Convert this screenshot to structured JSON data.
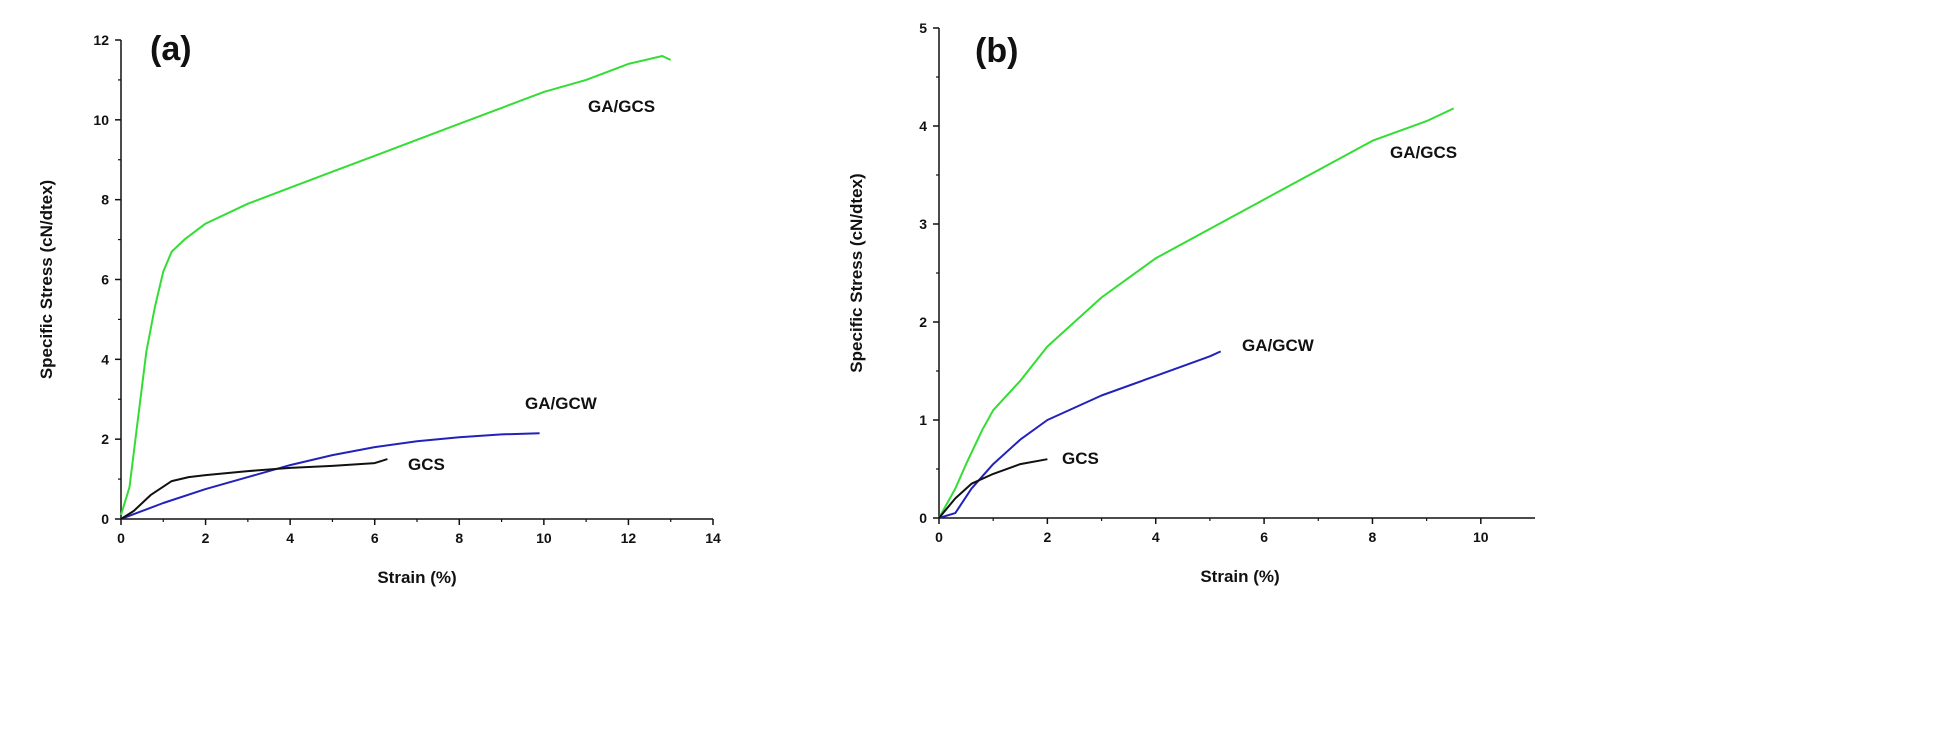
{
  "chart_data": [
    {
      "type": "line",
      "panel_label": "(a)",
      "xlabel": "Strain (%)",
      "ylabel": "Specific Stress (cN/dtex)",
      "xlim": [
        0,
        14
      ],
      "ylim": [
        0,
        12
      ],
      "xticks": [
        "0",
        "2",
        "4",
        "6",
        "8",
        "10",
        "12",
        "14"
      ],
      "yticks": [
        "0",
        "2",
        "4",
        "6",
        "8",
        "10",
        "12"
      ],
      "grid": false,
      "series": [
        {
          "name": "GA/GCS",
          "color": "#33dd33",
          "x": [
            0,
            0.2,
            0.4,
            0.6,
            0.8,
            1.0,
            1.2,
            1.5,
            2,
            3,
            4,
            5,
            6,
            7,
            8,
            9,
            10,
            11,
            12,
            12.8,
            13
          ],
          "y": [
            0.1,
            0.8,
            2.5,
            4.2,
            5.3,
            6.2,
            6.7,
            7.0,
            7.4,
            7.9,
            8.3,
            8.7,
            9.1,
            9.5,
            9.9,
            10.3,
            10.7,
            11.0,
            11.4,
            11.6,
            11.5
          ]
        },
        {
          "name": "GA/GCW",
          "color": "#2222bb",
          "x": [
            0,
            1,
            2,
            3,
            4,
            5,
            6,
            7,
            8,
            9,
            9.9
          ],
          "y": [
            0,
            0.4,
            0.75,
            1.05,
            1.35,
            1.6,
            1.8,
            1.95,
            2.05,
            2.12,
            2.15
          ]
        },
        {
          "name": "GCS",
          "color": "#111111",
          "x": [
            0,
            0.3,
            0.7,
            1.2,
            1.6,
            2,
            3,
            4,
            5,
            6,
            6.3
          ],
          "y": [
            0,
            0.2,
            0.6,
            0.95,
            1.05,
            1.1,
            1.2,
            1.28,
            1.33,
            1.4,
            1.5
          ]
        }
      ]
    },
    {
      "type": "line",
      "panel_label": "(b)",
      "xlabel": "Strain (%)",
      "ylabel": "Specific Stress (cN/dtex)",
      "xlim": [
        0,
        11
      ],
      "ylim": [
        0,
        5
      ],
      "xticks": [
        "0",
        "2",
        "4",
        "6",
        "8",
        "10"
      ],
      "yticks": [
        "0",
        "1",
        "2",
        "3",
        "4",
        "5"
      ],
      "grid": false,
      "series": [
        {
          "name": "GA/GCS",
          "color": "#33dd33",
          "x": [
            0,
            0.3,
            0.5,
            0.8,
            1,
            1.5,
            2,
            3,
            4,
            5,
            6,
            7,
            8,
            9,
            9.5
          ],
          "y": [
            0,
            0.3,
            0.55,
            0.9,
            1.1,
            1.4,
            1.75,
            2.25,
            2.65,
            2.95,
            3.25,
            3.55,
            3.85,
            4.05,
            4.18
          ]
        },
        {
          "name": "GA/GCW",
          "color": "#2222bb",
          "x": [
            0,
            0.3,
            0.6,
            1,
            1.5,
            2,
            3,
            4,
            5,
            5.2
          ],
          "y": [
            0,
            0.05,
            0.3,
            0.55,
            0.8,
            1.0,
            1.25,
            1.45,
            1.65,
            1.7
          ]
        },
        {
          "name": "GCS",
          "color": "#111111",
          "x": [
            0,
            0.3,
            0.6,
            1,
            1.5,
            2
          ],
          "y": [
            0,
            0.2,
            0.35,
            0.45,
            0.55,
            0.6
          ]
        }
      ]
    }
  ]
}
